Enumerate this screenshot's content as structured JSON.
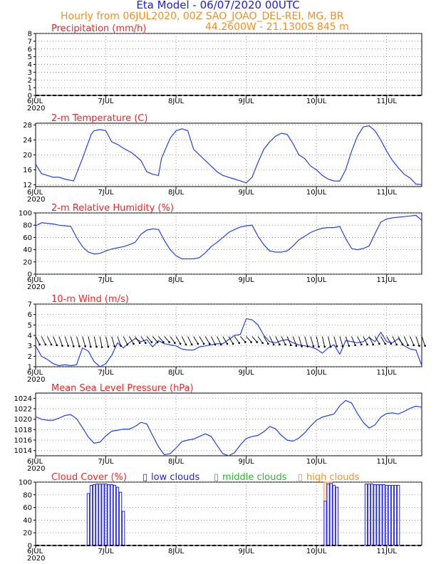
{
  "header": {
    "title": "Eta Model - 06/07/2020 00UTC",
    "subtitle": "Hourly from 06JUL2020, 00Z  SAO_JOAO_DEL-REI, MG, BR",
    "coords": "44.2600W - 21.1300S     845   m"
  },
  "x_axis": {
    "start_label": "6JUL",
    "year_label": "2020",
    "day_labels": [
      "6JUL",
      "7JUL",
      "8JUL",
      "9JUL",
      "10JUL",
      "11JUL"
    ]
  },
  "colors": {
    "line": "#2040ff",
    "title": "#ff2020",
    "arrow": "#000000",
    "high": "#ff8c1a",
    "low": "#2020ff",
    "middle": "#20c020"
  },
  "chart_data": [
    {
      "id": "precip",
      "type": "line",
      "title": "Precipitation (mm/h)",
      "ylim": [
        0,
        8
      ],
      "yticks": [
        0,
        1,
        2,
        3,
        4,
        5,
        6,
        7,
        8
      ],
      "x": [
        0,
        132
      ],
      "series": [
        {
          "values": [
            0,
            0
          ]
        }
      ]
    },
    {
      "id": "temp",
      "type": "line",
      "title": "2-m Temperature (C)",
      "ylim": [
        11.5,
        28.5
      ],
      "yticks": [
        12,
        16,
        20,
        24,
        28
      ],
      "x": [
        0,
        2,
        4,
        6,
        8,
        10,
        13,
        16,
        19,
        20,
        22,
        24,
        26,
        28,
        30,
        33,
        36,
        38,
        40,
        42,
        43,
        46,
        48,
        50,
        52,
        54,
        56,
        58,
        60,
        62,
        64,
        66,
        68,
        70,
        72,
        74,
        76,
        78,
        80,
        82,
        84,
        86,
        88,
        90,
        92,
        94,
        96,
        98,
        100,
        102,
        104,
        106,
        108,
        110,
        112,
        114,
        116,
        118,
        120,
        122,
        124,
        126,
        128,
        130,
        132
      ],
      "series": [
        {
          "values": [
            17.5,
            15,
            14.5,
            14,
            14,
            13.5,
            13,
            19,
            25.5,
            26.5,
            26.8,
            26.5,
            23.5,
            22.8,
            21.8,
            20.5,
            18.5,
            15.5,
            14.8,
            14.5,
            19,
            24.5,
            26.5,
            27,
            26.5,
            21.5,
            20,
            18.5,
            17,
            15.5,
            14.5,
            14,
            13.5,
            13,
            12.5,
            14,
            18,
            21.5,
            23.5,
            25,
            25.8,
            25.5,
            23,
            20,
            19,
            17,
            16,
            14.5,
            13.5,
            13,
            13,
            16,
            21,
            25,
            27.5,
            27.8,
            26.5,
            24,
            21,
            18.5,
            16.5,
            14.8,
            13.8,
            12.2,
            12
          ]
        }
      ]
    },
    {
      "id": "rh",
      "type": "line",
      "title": "2-m Relative Humidity (%)",
      "ylim": [
        0,
        100
      ],
      "yticks": [
        0,
        20,
        40,
        60,
        80,
        100
      ],
      "x": [
        0,
        2,
        4,
        6,
        8,
        10,
        12,
        14,
        16,
        18,
        20,
        22,
        24,
        26,
        28,
        30,
        32,
        34,
        36,
        38,
        40,
        42,
        44,
        46,
        48,
        50,
        52,
        54,
        56,
        58,
        60,
        62,
        64,
        66,
        68,
        70,
        72,
        74,
        76,
        78,
        80,
        82,
        84,
        86,
        88,
        90,
        92,
        94,
        96,
        98,
        100,
        102,
        104,
        106,
        108,
        110,
        112,
        114,
        116,
        118,
        120,
        122,
        124,
        126,
        128,
        130,
        132
      ],
      "series": [
        {
          "values": [
            79,
            84,
            83,
            82,
            80,
            79,
            78,
            60,
            45,
            36,
            33,
            34,
            38,
            41,
            43,
            45,
            48,
            52,
            65,
            72,
            74,
            73,
            55,
            40,
            30,
            25,
            25,
            25,
            27,
            35,
            45,
            52,
            60,
            68,
            73,
            77,
            79,
            80,
            62,
            48,
            38,
            36,
            36,
            38,
            46,
            56,
            62,
            68,
            72,
            75,
            76,
            76,
            78,
            58,
            42,
            40,
            42,
            46,
            66,
            85,
            90,
            92,
            93,
            94,
            95,
            96,
            88
          ]
        }
      ]
    },
    {
      "id": "wind",
      "type": "line",
      "title": "10-m Wind (m/s)",
      "ylim": [
        1,
        7
      ],
      "yticks": [
        1,
        2,
        3,
        4,
        5,
        6,
        7
      ],
      "x": [
        0,
        2,
        4,
        6,
        8,
        10,
        12,
        14,
        16,
        18,
        20,
        22,
        24,
        26,
        28,
        30,
        32,
        34,
        36,
        38,
        40,
        42,
        44,
        46,
        48,
        50,
        52,
        54,
        56,
        58,
        60,
        62,
        64,
        66,
        68,
        70,
        72,
        74,
        76,
        78,
        80,
        82,
        84,
        86,
        88,
        90,
        92,
        94,
        96,
        98,
        100,
        102,
        104,
        106,
        108,
        110,
        112,
        114,
        116,
        118,
        120,
        122,
        124,
        126,
        128,
        130,
        132
      ],
      "series": [
        {
          "values": [
            3,
            2,
            1.7,
            1.3,
            1.1,
            1.2,
            1.1,
            1.2,
            2.8,
            2.5,
            1.5,
            1,
            1.3,
            2.1,
            3.3,
            2.8,
            3.3,
            3.7,
            3.4,
            3.6,
            2.9,
            3.5,
            3.2,
            3.1,
            3,
            2.7,
            2.6,
            2.6,
            2.9,
            3,
            3.1,
            3.2,
            3.2,
            3.6,
            4,
            4.1,
            5.6,
            5.5,
            5,
            4,
            3.4,
            3.3,
            3.5,
            3.6,
            3.3,
            3.1,
            3,
            2.9,
            2.7,
            2.3,
            2.8,
            3.1,
            2.2,
            3.5,
            3.4,
            3.3,
            3.4,
            3.8,
            3.4,
            4.3,
            3.4,
            3.3,
            3.7,
            3,
            2.7,
            2.6,
            1.1
          ]
        }
      ],
      "arrow_dir_deg": [
        45,
        45,
        45,
        50,
        55,
        55,
        60,
        60,
        60,
        65,
        65,
        70,
        65,
        60,
        55,
        45,
        40,
        35,
        35,
        30,
        30,
        30,
        30,
        35,
        40,
        45,
        45,
        40,
        40,
        40,
        45,
        45,
        40,
        40,
        35,
        30,
        30,
        30,
        35,
        40,
        45,
        45,
        45,
        50,
        55,
        60,
        60,
        60,
        65,
        65,
        65,
        60,
        60,
        55,
        50,
        45,
        45,
        45,
        40,
        40,
        40,
        45,
        45,
        50,
        50,
        55,
        55
      ]
    },
    {
      "id": "mslp",
      "type": "line",
      "title": "Mean Sea Level Pressure (hPa)",
      "ylim": [
        1013,
        1025
      ],
      "yticks": [
        1014,
        1016,
        1018,
        1020,
        1022,
        1024
      ],
      "x": [
        0,
        2,
        4,
        6,
        8,
        10,
        12,
        14,
        16,
        18,
        20,
        22,
        24,
        26,
        28,
        30,
        32,
        34,
        36,
        38,
        40,
        42,
        44,
        46,
        48,
        50,
        52,
        54,
        56,
        58,
        60,
        62,
        64,
        66,
        68,
        70,
        72,
        74,
        76,
        78,
        80,
        82,
        84,
        86,
        88,
        90,
        92,
        94,
        96,
        98,
        100,
        102,
        104,
        106,
        108,
        110,
        112,
        114,
        116,
        118,
        120,
        122,
        124,
        126,
        128,
        130,
        132
      ],
      "series": [
        {
          "values": [
            1020.5,
            1020,
            1019.8,
            1019.8,
            1020.2,
            1020.7,
            1020.9,
            1020.1,
            1018.4,
            1016.6,
            1015.4,
            1015.6,
            1016.8,
            1017.7,
            1017.9,
            1018.1,
            1018.1,
            1018.6,
            1019.4,
            1019.1,
            1016.9,
            1014.7,
            1013.2,
            1013.4,
            1014.5,
            1015.7,
            1016.0,
            1016.2,
            1016.7,
            1017.2,
            1016.7,
            1015.0,
            1013.4,
            1012.8,
            1013.6,
            1015.1,
            1016.3,
            1016.7,
            1016.9,
            1017.6,
            1018.6,
            1018.2,
            1016.9,
            1016.0,
            1015.8,
            1016.4,
            1017.4,
            1018.7,
            1019.8,
            1020.4,
            1020.7,
            1021.0,
            1022.6,
            1023.6,
            1023.1,
            1021.1,
            1019.4,
            1018.3,
            1018.9,
            1020.4,
            1021.1,
            1021.2,
            1021.0,
            1021.5,
            1022.1,
            1022.5,
            1022.3
          ]
        }
      ]
    },
    {
      "id": "cloud",
      "type": "bar",
      "title": "Cloud Cover (%)",
      "legend": [
        "low clouds",
        "middle clouds",
        "high clouds"
      ],
      "ylim": [
        0,
        100
      ],
      "yticks": [
        0,
        20,
        40,
        60,
        80,
        100
      ],
      "low_x": [
        18,
        19,
        20,
        21,
        22,
        23,
        24,
        25,
        26,
        27,
        28,
        29,
        30,
        99,
        100,
        101,
        102,
        103,
        113,
        114,
        115,
        116,
        117,
        118,
        119,
        120,
        121,
        122,
        123,
        124
      ],
      "low_values": [
        82,
        95,
        96,
        97,
        97,
        97,
        97,
        96,
        96,
        95,
        92,
        84,
        54,
        70,
        97,
        98,
        95,
        92,
        97,
        97,
        97,
        96,
        96,
        96,
        96,
        95,
        95,
        95,
        95,
        95
      ],
      "high_x": [
        99,
        100,
        101
      ],
      "high_values": [
        100,
        100,
        100
      ]
    }
  ]
}
